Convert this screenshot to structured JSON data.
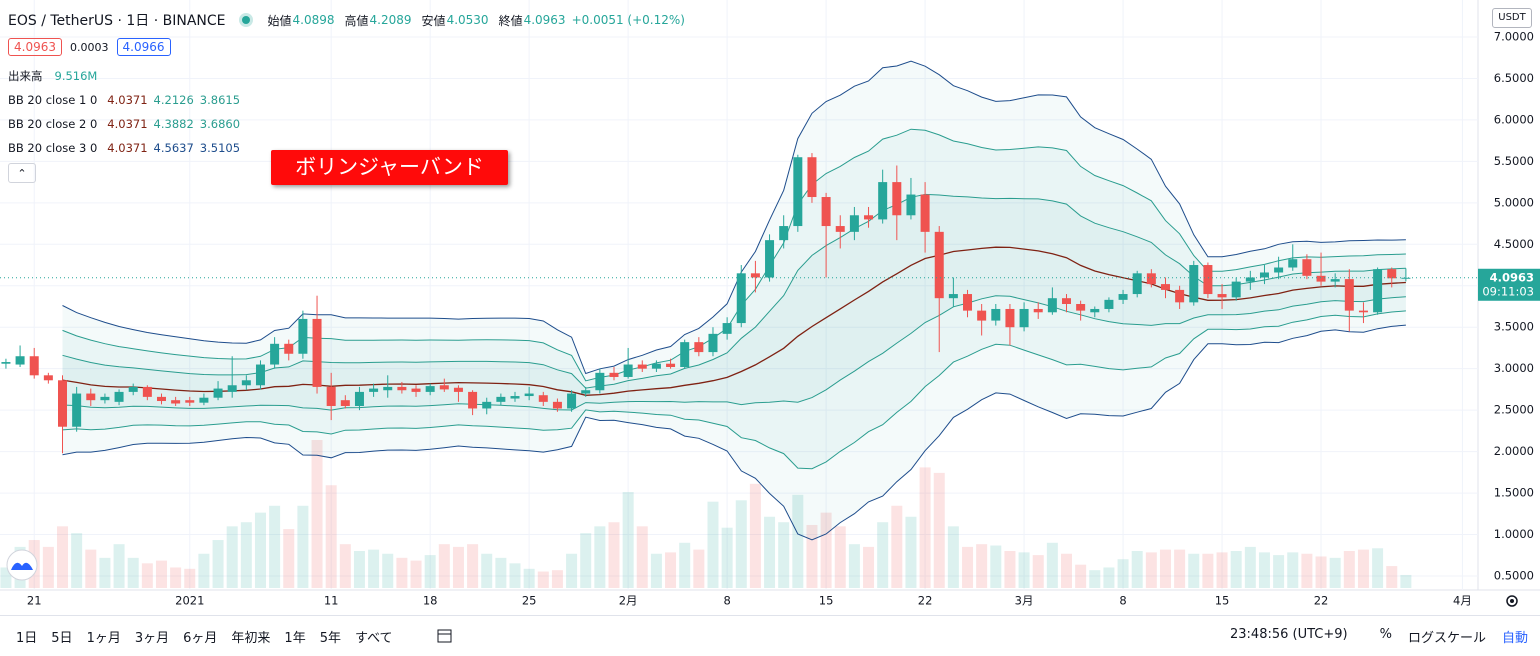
{
  "header": {
    "title": "EOS / TetherUS · 1日 · BINANCE",
    "ohlc": [
      {
        "label": "始値",
        "value": "4.0898"
      },
      {
        "label": "高値",
        "value": "4.2089"
      },
      {
        "label": "安値",
        "value": "4.0530"
      },
      {
        "label": "終値",
        "value": "4.0963"
      }
    ],
    "change": "+0.0051 (+0.12%)",
    "bid": "4.0963",
    "spread": "0.0003",
    "ask": "4.0966",
    "volume_label": "出来高",
    "volume_value": "9.516M",
    "indicators": [
      {
        "label": "BB 20 close 1 0",
        "values": [
          "4.0371",
          "4.2126",
          "3.8615"
        ]
      },
      {
        "label": "BB 20 close 2 0",
        "values": [
          "4.0371",
          "4.3882",
          "3.6860"
        ]
      },
      {
        "label": "BB 20 close 3 0",
        "values": [
          "4.0371",
          "4.5637",
          "3.5105"
        ]
      }
    ],
    "annotation": "ボリンジャーバンド",
    "currency": "USDT"
  },
  "chart_data": {
    "type": "candlestick",
    "up_color": "#26a69a",
    "down_color": "#ef5350",
    "band_colors": {
      "basis": "#7f2213",
      "bands": [
        "#2a9d8f",
        "#2a9d8f",
        "#1e4d8c"
      ],
      "fill": "#26a69a"
    },
    "open": [
      3.06,
      3.05,
      3.15,
      2.92,
      2.86,
      2.3,
      2.7,
      2.62,
      2.6,
      2.72,
      2.78,
      2.66,
      2.62,
      2.62,
      2.59,
      2.65,
      2.72,
      2.8,
      2.8,
      3.05,
      3.3,
      3.18,
      3.6,
      2.78,
      2.62,
      2.55,
      2.72,
      2.74,
      2.78,
      2.76,
      2.72,
      2.8,
      2.77,
      2.72,
      2.52,
      2.6,
      2.64,
      2.67,
      2.68,
      2.6,
      2.52,
      2.7,
      2.74,
      2.95,
      2.9,
      3.05,
      3.0,
      3.06,
      3.02,
      3.32,
      3.2,
      3.42,
      3.55,
      4.15,
      4.1,
      4.55,
      4.72,
      5.55,
      5.07,
      4.72,
      4.65,
      4.85,
      4.8,
      5.25,
      4.85,
      5.1,
      4.65,
      3.85,
      3.9,
      3.7,
      3.58,
      3.72,
      3.5,
      3.72,
      3.68,
      3.85,
      3.78,
      3.68,
      3.72,
      3.83,
      3.9,
      4.15,
      4.02,
      3.95,
      3.8,
      4.25,
      3.9,
      3.86,
      4.05,
      4.1,
      4.16,
      4.22,
      4.32,
      4.12,
      4.05,
      4.08,
      3.7,
      3.68,
      4.2,
      4.0898
    ],
    "high": [
      3.12,
      3.28,
      3.25,
      2.95,
      2.92,
      2.78,
      2.76,
      2.7,
      2.75,
      2.82,
      2.8,
      2.7,
      2.66,
      2.66,
      2.7,
      2.85,
      3.15,
      2.92,
      3.1,
      3.38,
      3.35,
      3.7,
      3.88,
      2.95,
      2.68,
      2.78,
      2.82,
      2.92,
      2.84,
      2.8,
      2.82,
      2.88,
      2.8,
      2.74,
      2.65,
      2.7,
      2.72,
      2.78,
      2.72,
      2.64,
      2.74,
      2.78,
      3.0,
      3.02,
      3.25,
      3.1,
      3.1,
      3.12,
      3.35,
      3.38,
      3.5,
      3.62,
      4.25,
      4.3,
      4.62,
      4.85,
      5.58,
      5.6,
      5.12,
      4.85,
      4.95,
      4.95,
      5.4,
      5.45,
      5.3,
      5.25,
      4.72,
      4.1,
      3.95,
      3.78,
      3.78,
      3.78,
      3.8,
      3.8,
      3.98,
      3.9,
      3.82,
      3.75,
      3.86,
      3.95,
      4.18,
      4.2,
      4.1,
      4.0,
      4.3,
      4.28,
      4.02,
      4.1,
      4.18,
      4.25,
      4.35,
      4.5,
      4.38,
      4.4,
      4.15,
      4.2,
      3.8,
      4.22,
      4.22,
      4.2089
    ],
    "low": [
      3.0,
      3.02,
      2.88,
      2.82,
      1.98,
      2.24,
      2.55,
      2.58,
      2.56,
      2.68,
      2.62,
      2.57,
      2.55,
      2.55,
      2.56,
      2.62,
      2.65,
      2.74,
      2.75,
      3.0,
      3.1,
      3.12,
      2.7,
      2.38,
      2.52,
      2.5,
      2.66,
      2.65,
      2.7,
      2.66,
      2.68,
      2.72,
      2.6,
      2.44,
      2.45,
      2.56,
      2.6,
      2.62,
      2.55,
      2.48,
      2.48,
      2.66,
      2.7,
      2.86,
      2.88,
      2.96,
      2.96,
      3.0,
      3.0,
      3.15,
      3.15,
      3.35,
      3.5,
      3.92,
      4.05,
      4.45,
      4.65,
      5.0,
      4.1,
      4.45,
      4.55,
      4.7,
      4.75,
      4.55,
      4.8,
      4.4,
      3.2,
      3.75,
      3.62,
      3.4,
      3.52,
      3.28,
      3.45,
      3.6,
      3.65,
      3.68,
      3.58,
      3.62,
      3.68,
      3.78,
      3.86,
      3.98,
      3.85,
      3.72,
      3.76,
      3.85,
      3.72,
      3.82,
      3.95,
      4.02,
      4.08,
      4.18,
      4.08,
      4.0,
      3.98,
      3.45,
      3.55,
      3.65,
      3.98,
      4.053
    ],
    "close": [
      3.08,
      3.15,
      2.92,
      2.86,
      2.3,
      2.7,
      2.62,
      2.66,
      2.72,
      2.78,
      2.66,
      2.61,
      2.58,
      2.59,
      2.65,
      2.76,
      2.8,
      2.86,
      3.05,
      3.3,
      3.18,
      3.6,
      2.78,
      2.55,
      2.55,
      2.72,
      2.76,
      2.78,
      2.74,
      2.72,
      2.79,
      2.75,
      2.72,
      2.52,
      2.6,
      2.66,
      2.67,
      2.7,
      2.6,
      2.52,
      2.7,
      2.74,
      2.95,
      2.9,
      3.05,
      3.0,
      3.06,
      3.02,
      3.32,
      3.2,
      3.42,
      3.55,
      4.15,
      4.1,
      4.55,
      4.72,
      5.55,
      5.07,
      4.72,
      4.65,
      4.85,
      4.8,
      5.25,
      4.85,
      5.1,
      4.65,
      3.85,
      3.9,
      3.7,
      3.58,
      3.72,
      3.5,
      3.72,
      3.68,
      3.85,
      3.78,
      3.7,
      3.72,
      3.83,
      3.9,
      4.15,
      4.02,
      3.95,
      3.8,
      4.25,
      3.9,
      3.86,
      4.05,
      4.1,
      4.16,
      4.22,
      4.32,
      4.12,
      4.05,
      4.08,
      3.7,
      3.68,
      4.2,
      4.09,
      4.0963
    ],
    "volume": [
      15000000,
      30000000,
      35000000,
      30000000,
      45000000,
      40000000,
      28000000,
      22000000,
      32000000,
      22000000,
      18000000,
      20000000,
      15000000,
      14000000,
      25000000,
      35000000,
      45000000,
      48000000,
      55000000,
      60000000,
      43000000,
      60000000,
      108000000,
      75000000,
      32000000,
      27000000,
      28000000,
      25000000,
      22000000,
      20000000,
      24000000,
      32000000,
      30000000,
      32000000,
      25000000,
      22000000,
      18000000,
      14000000,
      12000000,
      13000000,
      25000000,
      40000000,
      45000000,
      48000000,
      70000000,
      45000000,
      25000000,
      26000000,
      33000000,
      28000000,
      63000000,
      44000000,
      64000000,
      76000000,
      52000000,
      48000000,
      68000000,
      46000000,
      55000000,
      45000000,
      32000000,
      30000000,
      48000000,
      60000000,
      52000000,
      88000000,
      84000000,
      45000000,
      30000000,
      32000000,
      31000000,
      27000000,
      26000000,
      24000000,
      33000000,
      25000000,
      17000000,
      13000000,
      15000000,
      21000000,
      27000000,
      26000000,
      28000000,
      28000000,
      25000000,
      25000000,
      26000000,
      27000000,
      30000000,
      26000000,
      24000000,
      26000000,
      25000000,
      23000000,
      22000000,
      27000000,
      28000000,
      29000000,
      16000000,
      9516000
    ],
    "xlim": [
      -0.42,
      104.1
    ],
    "xticks": [
      {
        "value": 2,
        "label": "21"
      },
      {
        "value": 13,
        "label": "2021"
      },
      {
        "value": 23,
        "label": "11"
      },
      {
        "value": 30,
        "label": "18"
      },
      {
        "value": 37,
        "label": "25"
      },
      {
        "value": 44,
        "label": "2月"
      },
      {
        "value": 51,
        "label": "8"
      },
      {
        "value": 58,
        "label": "15"
      },
      {
        "value": 65,
        "label": "22"
      },
      {
        "value": 72,
        "label": "3月"
      },
      {
        "value": 79,
        "label": "8"
      },
      {
        "value": 86,
        "label": "15"
      },
      {
        "value": 93,
        "label": "22"
      },
      {
        "value": 103,
        "label": "4月"
      }
    ],
    "ylim": [
      0.331,
      7.446
    ],
    "yticks": [
      {
        "value": 0.5,
        "label": "0.5000"
      },
      {
        "value": 1,
        "label": "1.0000"
      },
      {
        "value": 1.5,
        "label": "1.5000"
      },
      {
        "value": 2,
        "label": "2.0000"
      },
      {
        "value": 2.5,
        "label": "2.5000"
      },
      {
        "value": 3,
        "label": "3.0000"
      },
      {
        "value": 3.5,
        "label": "3.5000"
      },
      {
        "value": 4,
        "label": "4.0000"
      },
      {
        "value": 4.5,
        "label": "4.5000"
      },
      {
        "value": 5,
        "label": "5.0000"
      },
      {
        "value": 5.5,
        "label": "5.5000"
      },
      {
        "value": 6,
        "label": "6.0000"
      },
      {
        "value": 6.5,
        "label": "6.5000"
      },
      {
        "value": 7,
        "label": "7.0000"
      }
    ],
    "grid": true,
    "last_price": {
      "label": "4.0963",
      "countdown": "09:11:03",
      "color": "#26a69a"
    }
  },
  "toolbar": {
    "ranges": [
      "1日",
      "5日",
      "1ヶ月",
      "3ヶ月",
      "6ヶ月",
      "年初来",
      "1年",
      "5年",
      "すべて"
    ],
    "time": "23:48:56 (UTC+9)",
    "percent": "%",
    "log": "ログスケール",
    "auto": "自動"
  }
}
